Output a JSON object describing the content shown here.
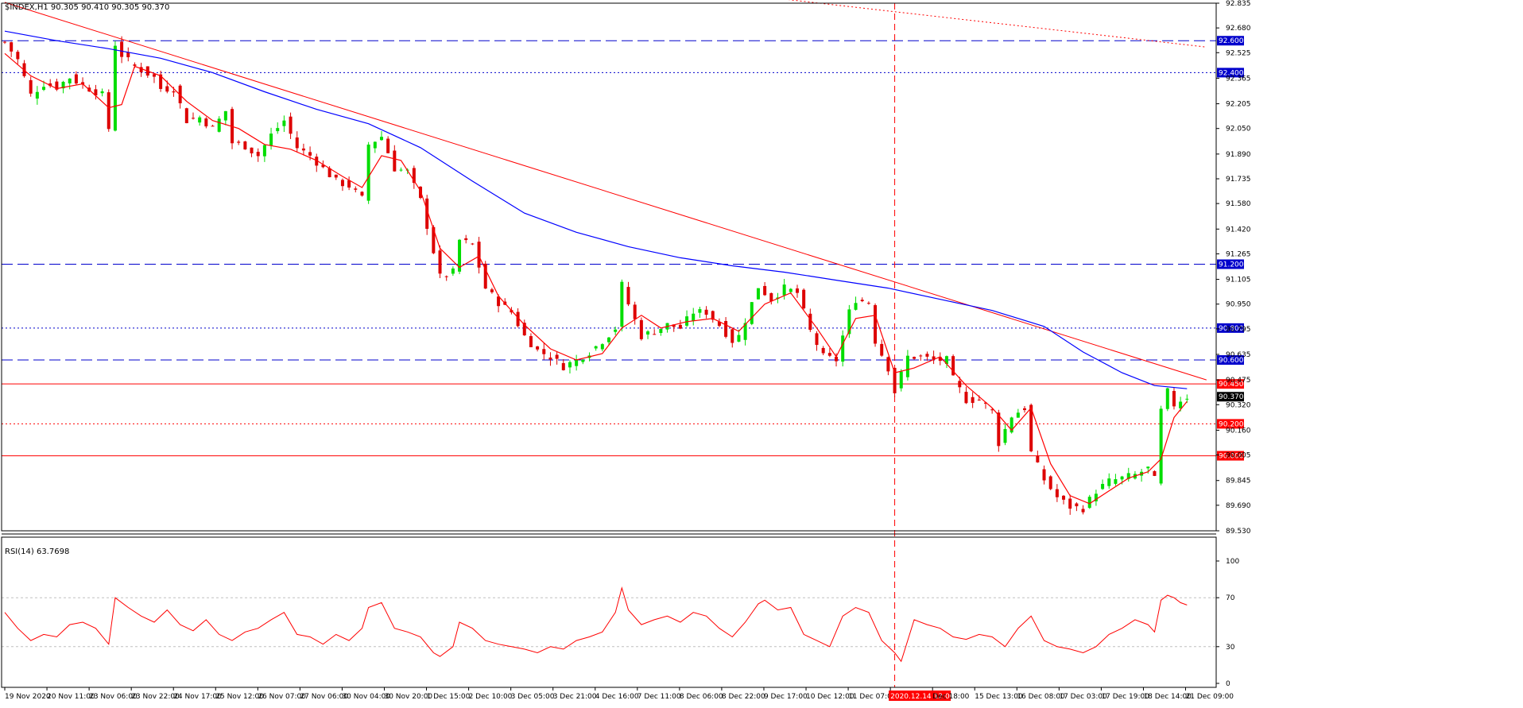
{
  "header": {
    "symbol_info": "$INDEX,H1  90.305 90.410 90.305 90.370",
    "rsi_info": "RSI(14) 63.7698"
  },
  "colors": {
    "bull": "#00dd00",
    "bear": "#dd0000",
    "ma_fast": "#ff0000",
    "ma_slow": "#0000ff",
    "trend": "#ff0000",
    "level_blue": "#0000cc",
    "level_red": "#ff0000",
    "rsi": "#ff0000",
    "grid": "#c0c0c0"
  },
  "chart_data": {
    "type": "candlestick",
    "symbol": "$INDEX",
    "timeframe": "H1",
    "last_price": "90.370",
    "ylim": [
      89.53,
      92.835
    ],
    "y_ticks": [
      "92.835",
      "92.680",
      "92.525",
      "92.365",
      "92.205",
      "92.050",
      "91.890",
      "91.735",
      "91.580",
      "91.420",
      "91.265",
      "91.105",
      "90.950",
      "90.795",
      "90.635",
      "90.475",
      "90.320",
      "90.160",
      "90.005",
      "89.845",
      "89.690",
      "89.530"
    ],
    "x_labels": [
      "19 Nov 2020",
      "20 Nov 11:00",
      "23 Nov 06:00",
      "23 Nov 22:00",
      "24 Nov 17:00",
      "25 Nov 12:00",
      "26 Nov 07:00",
      "27 Nov 06:00",
      "30 Nov 04:00",
      "30 Nov 20:00",
      "1 Dec 15:00",
      "2 Dec 10:00",
      "3 Dec 05:00",
      "3 Dec 21:00",
      "4 Dec 16:00",
      "7 Dec 11:00",
      "8 Dec 06:00",
      "8 Dec 22:00",
      "9 Dec 17:00",
      "10 Dec 12:00",
      "11 Dec 07:00",
      "2020.12.14 12:00",
      "Dec 18:00",
      "15 Dec 13:00",
      "16 Dec 08:00",
      "17 Dec 03:00",
      "17 Dec 19:00",
      "18 Dec 14:00",
      "21 Dec 09:00"
    ],
    "highlight_x_label": "2020.12.14 12:00",
    "close_path": [
      [
        0,
        92.59
      ],
      [
        2,
        92.48
      ],
      [
        4,
        92.26
      ],
      [
        6,
        92.33
      ],
      [
        8,
        92.31
      ],
      [
        10,
        92.37
      ],
      [
        12,
        92.32
      ],
      [
        15,
        92.26
      ],
      [
        16,
        92.05
      ],
      [
        17,
        92.58
      ],
      [
        18,
        92.51
      ],
      [
        20,
        92.44
      ],
      [
        23,
        92.37
      ],
      [
        24,
        92.3
      ],
      [
        26,
        92.3
      ],
      [
        28,
        92.1
      ],
      [
        30,
        92.12
      ],
      [
        32,
        92.05
      ],
      [
        34,
        92.16
      ],
      [
        35,
        91.96
      ],
      [
        37,
        91.94
      ],
      [
        39,
        91.88
      ],
      [
        41,
        92.01
      ],
      [
        43,
        92.1
      ],
      [
        45,
        91.93
      ],
      [
        47,
        91.88
      ],
      [
        49,
        91.8
      ],
      [
        51,
        91.72
      ],
      [
        53,
        91.69
      ],
      [
        55,
        91.61
      ],
      [
        56,
        91.95
      ],
      [
        58,
        92.0
      ],
      [
        60,
        91.8
      ],
      [
        62,
        91.78
      ],
      [
        64,
        91.6
      ],
      [
        66,
        91.28
      ],
      [
        67,
        91.12
      ],
      [
        69,
        91.15
      ],
      [
        70,
        91.35
      ],
      [
        72,
        91.32
      ],
      [
        74,
        91.05
      ],
      [
        76,
        90.96
      ],
      [
        78,
        90.9
      ],
      [
        80,
        90.75
      ],
      [
        82,
        90.66
      ],
      [
        84,
        90.62
      ],
      [
        86,
        90.56
      ],
      [
        88,
        90.6
      ],
      [
        90,
        90.65
      ],
      [
        92,
        90.72
      ],
      [
        94,
        90.8
      ],
      [
        95,
        91.07
      ],
      [
        96,
        90.95
      ],
      [
        98,
        90.75
      ],
      [
        100,
        90.78
      ],
      [
        102,
        90.82
      ],
      [
        104,
        90.8
      ],
      [
        106,
        90.9
      ],
      [
        108,
        90.9
      ],
      [
        110,
        90.82
      ],
      [
        112,
        90.72
      ],
      [
        113,
        90.75
      ],
      [
        114,
        90.85
      ],
      [
        116,
        91.06
      ],
      [
        118,
        90.98
      ],
      [
        120,
        91.05
      ],
      [
        122,
        91.02
      ],
      [
        124,
        90.78
      ],
      [
        126,
        90.62
      ],
      [
        128,
        90.6
      ],
      [
        130,
        90.9
      ],
      [
        131,
        90.98
      ],
      [
        133,
        90.96
      ],
      [
        134,
        90.72
      ],
      [
        136,
        90.55
      ],
      [
        137,
        90.4
      ],
      [
        139,
        90.62
      ],
      [
        141,
        90.62
      ],
      [
        143,
        90.6
      ],
      [
        145,
        90.6
      ],
      [
        146,
        90.48
      ],
      [
        148,
        90.35
      ],
      [
        150,
        90.35
      ],
      [
        152,
        90.28
      ],
      [
        153,
        90.08
      ],
      [
        155,
        90.25
      ],
      [
        157,
        90.3
      ],
      [
        158,
        90.02
      ],
      [
        160,
        89.85
      ],
      [
        162,
        89.74
      ],
      [
        164,
        89.68
      ],
      [
        166,
        89.67
      ],
      [
        168,
        89.78
      ],
      [
        170,
        89.84
      ],
      [
        172,
        89.86
      ],
      [
        174,
        89.88
      ],
      [
        176,
        89.92
      ],
      [
        177,
        89.85
      ],
      [
        178,
        90.28
      ],
      [
        179,
        90.4
      ],
      [
        180,
        90.32
      ],
      [
        181,
        90.35
      ],
      [
        182,
        90.37
      ]
    ],
    "ma_fast_path": [
      [
        0,
        92.52
      ],
      [
        4,
        92.38
      ],
      [
        8,
        92.3
      ],
      [
        12,
        92.33
      ],
      [
        16,
        92.18
      ],
      [
        18,
        92.2
      ],
      [
        20,
        92.44
      ],
      [
        24,
        92.38
      ],
      [
        28,
        92.22
      ],
      [
        32,
        92.1
      ],
      [
        36,
        92.05
      ],
      [
        40,
        91.95
      ],
      [
        44,
        91.92
      ],
      [
        48,
        91.85
      ],
      [
        52,
        91.75
      ],
      [
        55,
        91.68
      ],
      [
        58,
        91.88
      ],
      [
        61,
        91.85
      ],
      [
        64,
        91.66
      ],
      [
        67,
        91.3
      ],
      [
        70,
        91.18
      ],
      [
        73,
        91.25
      ],
      [
        76,
        91.0
      ],
      [
        80,
        90.82
      ],
      [
        84,
        90.67
      ],
      [
        88,
        90.6
      ],
      [
        92,
        90.64
      ],
      [
        95,
        90.8
      ],
      [
        98,
        90.88
      ],
      [
        101,
        90.8
      ],
      [
        105,
        90.84
      ],
      [
        109,
        90.86
      ],
      [
        113,
        90.78
      ],
      [
        117,
        90.95
      ],
      [
        121,
        91.02
      ],
      [
        125,
        90.8
      ],
      [
        128,
        90.62
      ],
      [
        131,
        90.86
      ],
      [
        134,
        90.88
      ],
      [
        137,
        90.52
      ],
      [
        140,
        90.55
      ],
      [
        144,
        90.62
      ],
      [
        148,
        90.44
      ],
      [
        152,
        90.3
      ],
      [
        155,
        90.16
      ],
      [
        158,
        90.3
      ],
      [
        161,
        89.95
      ],
      [
        164,
        89.75
      ],
      [
        167,
        89.7
      ],
      [
        170,
        89.78
      ],
      [
        173,
        89.86
      ],
      [
        176,
        89.9
      ],
      [
        178,
        89.98
      ],
      [
        180,
        90.24
      ],
      [
        182,
        90.34
      ]
    ],
    "ma_slow_path": [
      [
        0,
        92.66
      ],
      [
        8,
        92.6
      ],
      [
        16,
        92.55
      ],
      [
        24,
        92.49
      ],
      [
        32,
        92.4
      ],
      [
        40,
        92.28
      ],
      [
        48,
        92.17
      ],
      [
        56,
        92.08
      ],
      [
        64,
        91.93
      ],
      [
        72,
        91.72
      ],
      [
        80,
        91.52
      ],
      [
        88,
        91.4
      ],
      [
        96,
        91.31
      ],
      [
        104,
        91.24
      ],
      [
        112,
        91.19
      ],
      [
        120,
        91.15
      ],
      [
        128,
        91.1
      ],
      [
        136,
        91.05
      ],
      [
        144,
        90.98
      ],
      [
        152,
        90.91
      ],
      [
        160,
        90.81
      ],
      [
        166,
        90.65
      ],
      [
        172,
        90.52
      ],
      [
        177,
        90.44
      ],
      [
        182,
        90.42
      ]
    ],
    "trend_line_main": [
      [
        0,
        92.84
      ],
      [
        185,
        90.475
      ]
    ],
    "trend_line_dotted": [
      [
        120,
        92.86
      ],
      [
        185,
        92.56
      ]
    ],
    "vline_index": 137,
    "levels": [
      {
        "label": "92.600",
        "price": 92.6,
        "color": "blue",
        "style": "dash"
      },
      {
        "label": "92.400",
        "price": 92.4,
        "color": "blue",
        "style": "dot"
      },
      {
        "label": "91.200",
        "price": 91.2,
        "color": "blue",
        "style": "dash"
      },
      {
        "label": "90.800",
        "price": 90.8,
        "color": "blue",
        "style": "dot"
      },
      {
        "label": "90.600",
        "price": 90.6,
        "color": "blue",
        "style": "dash"
      },
      {
        "label": "90.450",
        "price": 90.45,
        "color": "red",
        "style": "solid"
      },
      {
        "label": "90.200",
        "price": 90.2,
        "color": "red",
        "style": "dot"
      },
      {
        "label": "90.000",
        "price": 90.0,
        "color": "red",
        "style": "solid"
      }
    ],
    "rsi": {
      "name": "RSI(14)",
      "value": "63.7698",
      "ylim": [
        0,
        100
      ],
      "ticks": [
        "100",
        "70",
        "30",
        "0"
      ],
      "levels": [
        70,
        30
      ],
      "path": [
        [
          0,
          58
        ],
        [
          2,
          45
        ],
        [
          4,
          35
        ],
        [
          6,
          40
        ],
        [
          8,
          38
        ],
        [
          10,
          48
        ],
        [
          12,
          50
        ],
        [
          14,
          45
        ],
        [
          16,
          32
        ],
        [
          17,
          70
        ],
        [
          19,
          62
        ],
        [
          21,
          55
        ],
        [
          23,
          50
        ],
        [
          25,
          60
        ],
        [
          27,
          48
        ],
        [
          29,
          43
        ],
        [
          31,
          52
        ],
        [
          33,
          40
        ],
        [
          35,
          35
        ],
        [
          37,
          42
        ],
        [
          39,
          45
        ],
        [
          41,
          52
        ],
        [
          43,
          58
        ],
        [
          45,
          40
        ],
        [
          47,
          38
        ],
        [
          49,
          32
        ],
        [
          51,
          40
        ],
        [
          53,
          35
        ],
        [
          55,
          45
        ],
        [
          56,
          62
        ],
        [
          58,
          66
        ],
        [
          60,
          45
        ],
        [
          62,
          42
        ],
        [
          64,
          38
        ],
        [
          66,
          25
        ],
        [
          67,
          22
        ],
        [
          69,
          30
        ],
        [
          70,
          50
        ],
        [
          72,
          45
        ],
        [
          74,
          35
        ],
        [
          76,
          32
        ],
        [
          78,
          30
        ],
        [
          80,
          28
        ],
        [
          82,
          25
        ],
        [
          84,
          30
        ],
        [
          86,
          28
        ],
        [
          88,
          35
        ],
        [
          90,
          38
        ],
        [
          92,
          42
        ],
        [
          94,
          58
        ],
        [
          95,
          78
        ],
        [
          96,
          60
        ],
        [
          98,
          48
        ],
        [
          100,
          52
        ],
        [
          102,
          55
        ],
        [
          104,
          50
        ],
        [
          106,
          58
        ],
        [
          108,
          55
        ],
        [
          110,
          45
        ],
        [
          112,
          38
        ],
        [
          114,
          50
        ],
        [
          116,
          65
        ],
        [
          117,
          68
        ],
        [
          119,
          60
        ],
        [
          121,
          62
        ],
        [
          123,
          40
        ],
        [
          125,
          35
        ],
        [
          127,
          30
        ],
        [
          129,
          55
        ],
        [
          131,
          62
        ],
        [
          133,
          58
        ],
        [
          135,
          35
        ],
        [
          137,
          25
        ],
        [
          138,
          18
        ],
        [
          140,
          52
        ],
        [
          142,
          48
        ],
        [
          144,
          45
        ],
        [
          146,
          38
        ],
        [
          148,
          36
        ],
        [
          150,
          40
        ],
        [
          152,
          38
        ],
        [
          154,
          30
        ],
        [
          156,
          45
        ],
        [
          158,
          55
        ],
        [
          160,
          35
        ],
        [
          162,
          30
        ],
        [
          164,
          28
        ],
        [
          166,
          25
        ],
        [
          168,
          30
        ],
        [
          170,
          40
        ],
        [
          172,
          45
        ],
        [
          174,
          52
        ],
        [
          176,
          48
        ],
        [
          177,
          42
        ],
        [
          178,
          68
        ],
        [
          179,
          72
        ],
        [
          180,
          70
        ],
        [
          181,
          66
        ],
        [
          182,
          64
        ]
      ]
    }
  }
}
